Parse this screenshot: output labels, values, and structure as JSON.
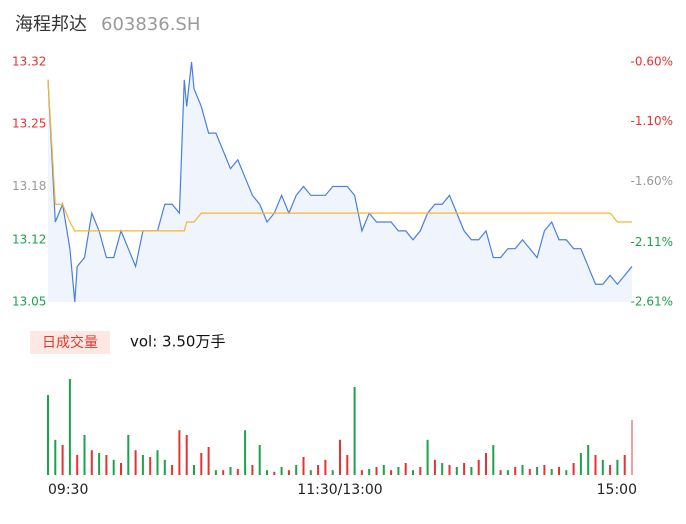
{
  "chart_data": [
    {
      "type": "line",
      "title": "海程邦达",
      "subtitle": "603836.SH",
      "x": [
        0,
        3,
        6,
        9,
        11,
        12,
        15,
        18,
        21,
        24,
        27,
        30,
        33,
        36,
        39,
        42,
        45,
        48,
        51,
        54,
        56,
        57,
        59,
        60,
        63,
        66,
        69,
        72,
        75,
        78,
        81,
        84,
        87,
        90,
        93,
        96,
        99,
        102,
        105,
        108,
        111,
        114,
        117,
        120,
        123,
        126,
        129,
        132,
        135,
        138,
        141,
        144,
        147,
        150,
        153,
        156,
        159,
        162,
        165,
        168,
        171,
        174,
        177,
        180,
        183,
        186,
        189,
        192,
        195,
        198,
        201,
        204,
        207,
        210,
        213,
        216,
        219,
        222,
        225,
        228,
        231,
        234,
        237,
        240
      ],
      "series": [
        {
          "color": "#4a7fe0",
          "values": [
            13.3,
            13.14,
            13.16,
            13.11,
            13.05,
            13.09,
            13.1,
            13.15,
            13.13,
            13.1,
            13.1,
            13.13,
            13.11,
            13.09,
            13.13,
            13.13,
            13.13,
            13.16,
            13.16,
            13.15,
            13.3,
            13.27,
            13.32,
            13.29,
            13.27,
            13.24,
            13.24,
            13.22,
            13.2,
            13.21,
            13.19,
            13.17,
            13.16,
            13.14,
            13.15,
            13.17,
            13.15,
            13.17,
            13.18,
            13.17,
            13.17,
            13.17,
            13.18,
            13.18,
            13.18,
            13.17,
            13.13,
            13.15,
            13.14,
            13.14,
            13.14,
            13.13,
            13.13,
            13.12,
            13.13,
            13.15,
            13.16,
            13.16,
            13.17,
            13.15,
            13.13,
            13.12,
            13.12,
            13.13,
            13.1,
            13.1,
            13.11,
            13.11,
            13.12,
            13.11,
            13.1,
            13.13,
            13.14,
            13.12,
            13.12,
            13.11,
            13.11,
            13.09,
            13.07,
            13.07,
            13.08,
            13.07,
            13.08,
            13.09
          ]
        },
        {
          "color": "#f5b731",
          "values": [
            13.3,
            13.16,
            13.16,
            13.14,
            13.13,
            13.13,
            13.13,
            13.13,
            13.13,
            13.13,
            13.13,
            13.13,
            13.13,
            13.13,
            13.13,
            13.13,
            13.13,
            13.13,
            13.13,
            13.13,
            13.13,
            13.14,
            13.14,
            13.14,
            13.15,
            13.15,
            13.15,
            13.15,
            13.15,
            13.15,
            13.15,
            13.15,
            13.15,
            13.15,
            13.15,
            13.15,
            13.15,
            13.15,
            13.15,
            13.15,
            13.15,
            13.15,
            13.15,
            13.15,
            13.15,
            13.15,
            13.15,
            13.15,
            13.15,
            13.15,
            13.15,
            13.15,
            13.15,
            13.15,
            13.15,
            13.15,
            13.15,
            13.15,
            13.15,
            13.15,
            13.15,
            13.15,
            13.15,
            13.15,
            13.15,
            13.15,
            13.15,
            13.15,
            13.15,
            13.15,
            13.15,
            13.15,
            13.15,
            13.15,
            13.15,
            13.15,
            13.15,
            13.15,
            13.15,
            13.15,
            13.15,
            13.14,
            13.14,
            13.14
          ]
        }
      ],
      "xlim": [
        0,
        240
      ],
      "ylim": [
        13.05,
        13.32
      ],
      "yticks": [
        13.32,
        13.25,
        13.18,
        13.12,
        13.05
      ],
      "ytick_colors": [
        "#e8312f",
        "#e8312f",
        "#999999",
        "#1aa34a",
        "#1aa34a"
      ],
      "y2lim": [
        -2.61,
        -0.6
      ],
      "y2ticks": [
        {
          "value": -0.6,
          "label": "-0.60%"
        },
        {
          "value": -1.1,
          "label": "-1.10%"
        },
        {
          "value": -1.6,
          "label": "-1.60%"
        },
        {
          "value": -2.11,
          "label": "-2.11%"
        },
        {
          "value": -2.61,
          "label": "-2.61%"
        }
      ],
      "y2tick_colors": [
        "#e8312f",
        "#e8312f",
        "#999999",
        "#1aa34a",
        "#1aa34a"
      ],
      "area_color": "#dbe6fa",
      "grid": false
    },
    {
      "type": "bar",
      "title": "日成交量",
      "subtitle": "vol: 3.50万手",
      "x": [
        0,
        3,
        6,
        9,
        12,
        15,
        18,
        21,
        24,
        27,
        30,
        33,
        36,
        39,
        42,
        45,
        48,
        51,
        54,
        57,
        60,
        63,
        66,
        69,
        72,
        75,
        78,
        81,
        84,
        87,
        90,
        93,
        96,
        99,
        102,
        105,
        108,
        111,
        114,
        117,
        120,
        123,
        126,
        129,
        132,
        135,
        138,
        141,
        144,
        147,
        150,
        153,
        156,
        159,
        162,
        165,
        168,
        171,
        174,
        177,
        180,
        183,
        186,
        189,
        192,
        195,
        198,
        201,
        204,
        207,
        210,
        213,
        216,
        219,
        222,
        225,
        228,
        231,
        234,
        237,
        240
      ],
      "values": [
        1000,
        440,
        375,
        1200,
        250,
        500,
        310,
        275,
        250,
        190,
        150,
        500,
        310,
        250,
        225,
        310,
        190,
        125,
        560,
        500,
        125,
        275,
        350,
        60,
        60,
        100,
        75,
        560,
        125,
        375,
        60,
        40,
        100,
        60,
        125,
        225,
        60,
        125,
        190,
        60,
        440,
        250,
        1100,
        60,
        75,
        100,
        125,
        60,
        100,
        150,
        60,
        100,
        440,
        190,
        150,
        125,
        100,
        150,
        100,
        190,
        275,
        375,
        60,
        60,
        100,
        125,
        75,
        100,
        125,
        75,
        100,
        60,
        150,
        275,
        375,
        250,
        190,
        125,
        190,
        250,
        690
      ],
      "bar_colors": [
        "#1aa34a",
        "#1aa34a",
        "#e8312f",
        "#1aa34a",
        "#e8312f",
        "#1aa34a",
        "#e8312f",
        "#1aa34a",
        "#e8312f",
        "#1aa34a",
        "#e8312f",
        "#1aa34a",
        "#e8312f",
        "#1aa34a",
        "#e8312f",
        "#1aa34a",
        "#1aa34a",
        "#e8312f",
        "#e8312f",
        "#e8312f",
        "#1aa34a",
        "#e8312f",
        "#e8312f",
        "#1aa34a",
        "#e8312f",
        "#1aa34a",
        "#e8312f",
        "#1aa34a",
        "#e8312f",
        "#1aa34a",
        "#1aa34a",
        "#e8312f",
        "#1aa34a",
        "#e8312f",
        "#1aa34a",
        "#e8312f",
        "#1aa34a",
        "#e8312f",
        "#e8312f",
        "#1aa34a",
        "#e8312f",
        "#e8312f",
        "#1aa34a",
        "#e8312f",
        "#1aa34a",
        "#e8312f",
        "#1aa34a",
        "#e8312f",
        "#1aa34a",
        "#e8312f",
        "#1aa34a",
        "#e8312f",
        "#1aa34a",
        "#e8312f",
        "#1aa34a",
        "#e8312f",
        "#1aa34a",
        "#e8312f",
        "#1aa34a",
        "#e8312f",
        "#e8312f",
        "#1aa34a",
        "#e8312f",
        "#1aa34a",
        "#e8312f",
        "#1aa34a",
        "#e8312f",
        "#1aa34a",
        "#e8312f",
        "#1aa34a",
        "#e8312f",
        "#1aa34a",
        "#e8312f",
        "#1aa34a",
        "#1aa34a",
        "#e8312f",
        "#1aa34a",
        "#e8312f",
        "#1aa34a",
        "#e8312f",
        "#f0a0a0"
      ],
      "xlim": [
        0,
        240
      ],
      "ylim": [
        0,
        1250
      ],
      "xticks": [
        {
          "value": 0,
          "label": "09:30"
        },
        {
          "value": 120,
          "label": "11:30/13:00"
        },
        {
          "value": 240,
          "label": "15:00"
        }
      ]
    }
  ]
}
